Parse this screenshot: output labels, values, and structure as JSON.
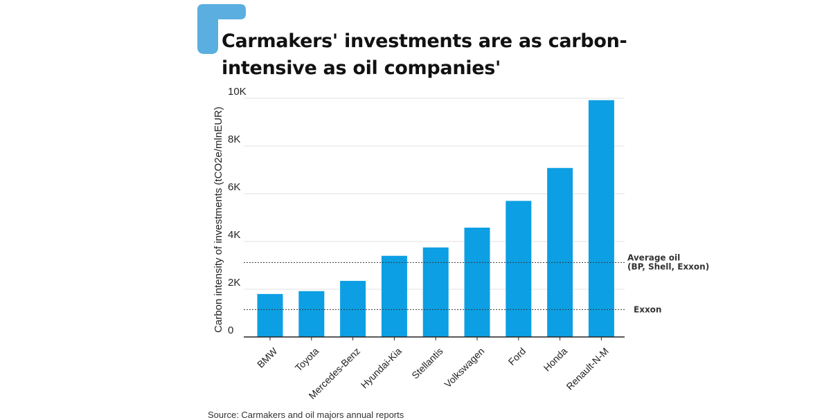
{
  "colors": {
    "bar": "#0c9fe3",
    "brand_mark": "#5aaee0",
    "grid": "#e2e2e2",
    "axis": "#222222",
    "reference_line": "#333333"
  },
  "title": "Carmakers' investments are as carbon-intensive as oil companies'",
  "source": "Source: Carmakers and oil majors annual reports",
  "chart_data": {
    "type": "bar",
    "ylabel": "Carbon intensity of investments (tCO2e/mlnEUR)",
    "xlabel": "",
    "ylim": [
      0,
      10000
    ],
    "y_ticks": [
      0,
      2000,
      4000,
      6000,
      8000,
      10000
    ],
    "y_tick_labels": [
      "0",
      "2K",
      "4K",
      "6K",
      "8K",
      "10K"
    ],
    "grid": true,
    "categories": [
      "BMW",
      "Toyota",
      "Mercedes-Benz",
      "Hyundai-Kia",
      "Stellantis",
      "Volkswagen",
      "Ford",
      "Honda",
      "Renault-N-M"
    ],
    "values": [
      1800,
      1920,
      2350,
      3400,
      3750,
      4580,
      5700,
      7080,
      9920
    ],
    "reference_lines": [
      {
        "label_lines": [
          "Average oil",
          "(BP, Shell, Exxon)"
        ],
        "value": 3120
      },
      {
        "label_lines": [
          "Exxon"
        ],
        "value": 1150
      }
    ]
  }
}
